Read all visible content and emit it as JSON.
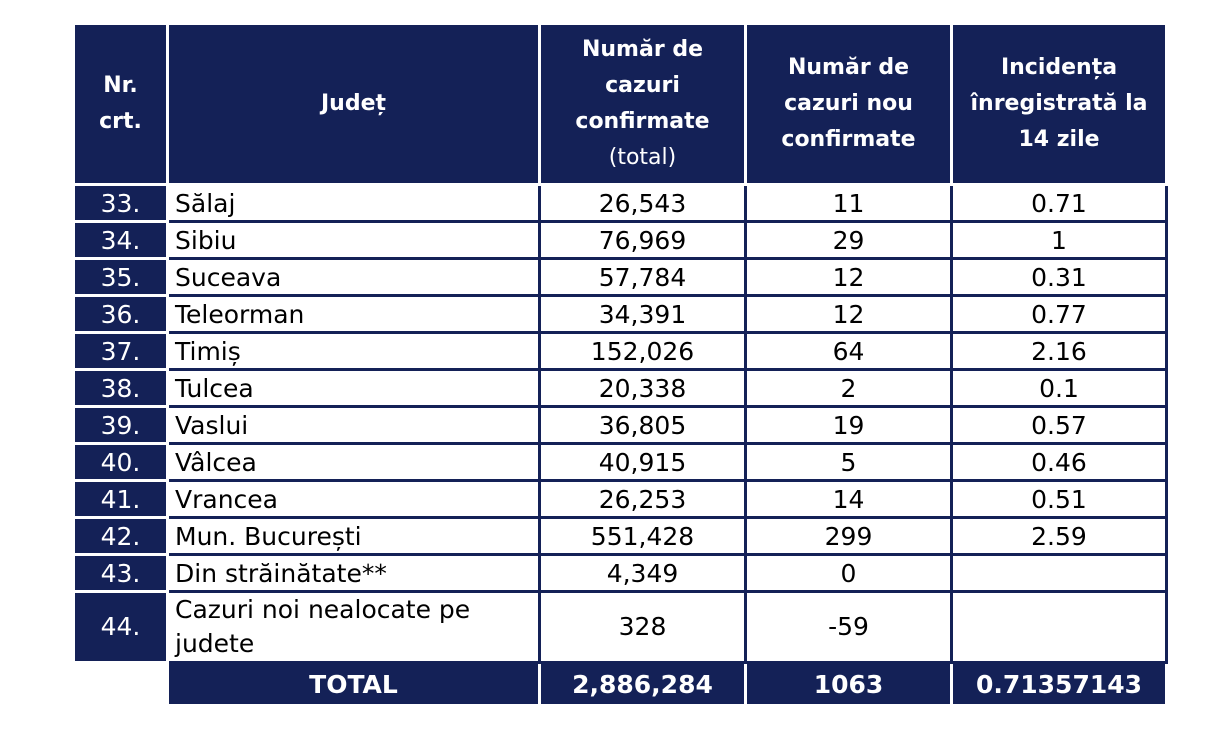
{
  "header": {
    "nr": "Nr. crt.",
    "judet": "Județ",
    "total_cases_main": "Număr de cazuri confirmate",
    "total_cases_sub": "(total)",
    "new_cases": "Număr de cazuri nou confirmate",
    "incidence": "Incidența înregistrată la 14 zile"
  },
  "rows": [
    {
      "nr": "33.",
      "judet": "Sălaj",
      "total": "26,543",
      "new": "11",
      "incidence": "0.71"
    },
    {
      "nr": "34.",
      "judet": "Sibiu",
      "total": "76,969",
      "new": "29",
      "incidence": "1"
    },
    {
      "nr": "35.",
      "judet": "Suceava",
      "total": "57,784",
      "new": "12",
      "incidence": "0.31"
    },
    {
      "nr": "36.",
      "judet": "Teleorman",
      "total": "34,391",
      "new": "12",
      "incidence": "0.77"
    },
    {
      "nr": "37.",
      "judet": "Timiș",
      "total": "152,026",
      "new": "64",
      "incidence": "2.16"
    },
    {
      "nr": "38.",
      "judet": "Tulcea",
      "total": "20,338",
      "new": "2",
      "incidence": "0.1"
    },
    {
      "nr": "39.",
      "judet": "Vaslui",
      "total": "36,805",
      "new": "19",
      "incidence": "0.57"
    },
    {
      "nr": "40.",
      "judet": "Vâlcea",
      "total": "40,915",
      "new": "5",
      "incidence": "0.46"
    },
    {
      "nr": "41.",
      "judet": "Vrancea",
      "total": "26,253",
      "new": "14",
      "incidence": "0.51"
    },
    {
      "nr": "42.",
      "judet": "Mun. București",
      "total": "551,428",
      "new": "299",
      "incidence": "2.59"
    },
    {
      "nr": "43.",
      "judet": "Din străinătate**",
      "total": "4,349",
      "new": "0",
      "incidence": ""
    },
    {
      "nr": "44.",
      "judet": "Cazuri noi nealocate pe judete",
      "total": "328",
      "new": "-59",
      "incidence": ""
    }
  ],
  "total": {
    "label": "TOTAL",
    "total": "2,886,284",
    "new": "1063",
    "incidence": "0.71357143"
  },
  "colors": {
    "header_bg": "#142157",
    "header_text": "#ffffff"
  }
}
